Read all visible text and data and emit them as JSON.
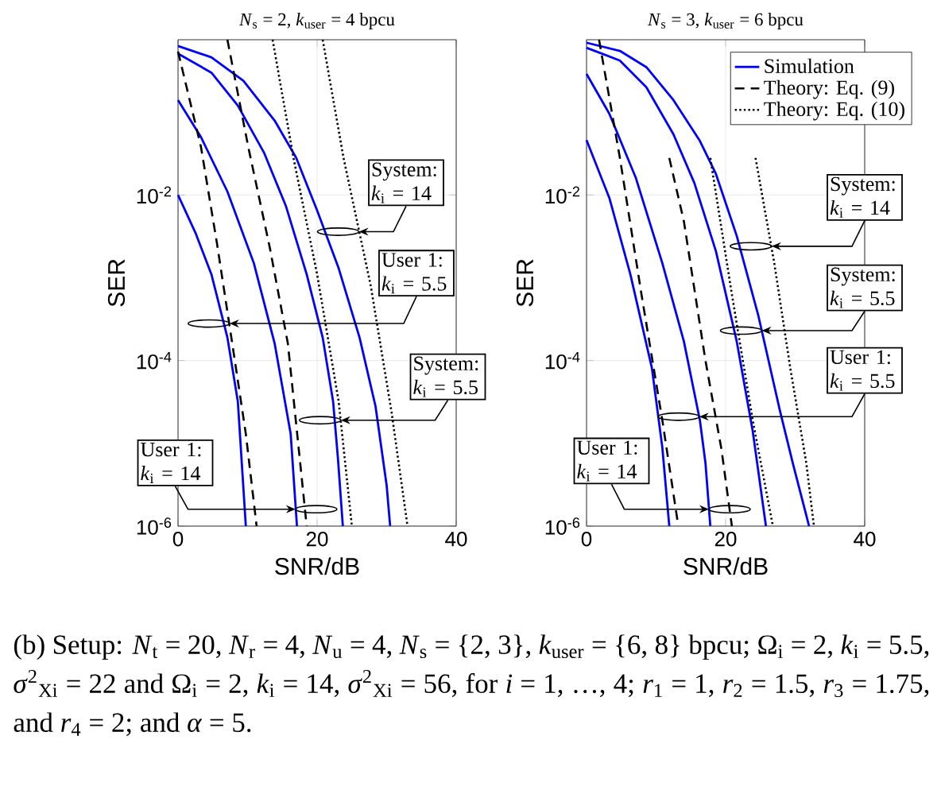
{
  "chart_data": [
    {
      "type": "line",
      "title": "*N*$_{s}$ = 2, *k*$_{user}$ = 4 bpcu",
      "xlabel": "SNR/dB",
      "ylabel": "SER",
      "log": "y",
      "grid": true,
      "xlim": [
        0,
        40
      ],
      "ylim": [
        1e-06,
        0.75
      ],
      "xticks": [
        0,
        20,
        40
      ],
      "yticks": [
        {
          "value": 1e-06,
          "label": "10$^{-6}$"
        },
        {
          "value": 0.0001,
          "label": "10$^{-4}$"
        },
        {
          "value": 0.01,
          "label": "10$^{-2}$"
        }
      ],
      "series": [
        {
          "color": "#0000ff",
          "line_style": "solid",
          "x": [
            0,
            4.8,
            9.4,
            13.9,
            17,
            20,
            23.1,
            26.1,
            28.4,
            30,
            30.5
          ],
          "values": [
            0.63,
            0.46,
            0.24,
            0.079,
            0.028,
            0.0065,
            0.0013,
            0.00019,
            2.8e-05,
            3.1e-06,
            1e-06
          ]
        },
        {
          "color": "#0000ff",
          "line_style": "solid",
          "x": [
            0,
            4.8,
            8.6,
            12.4,
            15.5,
            18.5,
            20.8,
            22.3,
            23,
            23.7
          ],
          "values": [
            0.51,
            0.3,
            0.12,
            0.032,
            0.0074,
            0.0011,
            0.00019,
            3.2e-05,
            6.5e-06,
            1e-06
          ]
        },
        {
          "color": "#0000ff",
          "line_style": "solid",
          "x": [
            0,
            3.3,
            7.1,
            10.9,
            13.9,
            16.2,
            17.1
          ],
          "values": [
            0.14,
            0.05,
            0.011,
            0.0015,
            0.00016,
            1.3e-05,
            1e-06
          ]
        },
        {
          "color": "#0000ff",
          "line_style": "solid",
          "x": [
            0,
            2.5,
            4.8,
            7.1,
            8.6,
            9.75
          ],
          "values": [
            0.01,
            0.0035,
            0.0011,
            0.00019,
            3.2e-05,
            1e-06
          ]
        },
        {
          "color": "#000000",
          "line_style": "dashed",
          "x": [
            0,
            3.3,
            5.6,
            7.8,
            9.75,
            11.3
          ],
          "values": [
            0.54,
            0.038,
            0.0026,
            0.00016,
            1.3e-05,
            1e-06
          ]
        },
        {
          "color": "#000000",
          "line_style": "dashed",
          "x": [
            7.1,
            10.1,
            13.2,
            15.8,
            18.5
          ],
          "values": [
            0.75,
            0.038,
            0.0023,
            0.00016,
            1e-06
          ]
        },
        {
          "color": "#000000",
          "line_style": "dotted",
          "x": [
            13.6,
            16.6,
            20,
            23.1,
            25
          ],
          "values": [
            0.75,
            0.028,
            0.0011,
            3.2e-05,
            1e-06
          ]
        },
        {
          "color": "#000000",
          "line_style": "dotted",
          "x": [
            20.8,
            23.8,
            27.7,
            30.7,
            33
          ],
          "values": [
            0.75,
            0.028,
            0.00081,
            2.4e-05,
            1e-06
          ]
        }
      ],
      "annotations": [
        {
          "text": "System: *k*$_{i}$ = 14",
          "x": 26,
          "y": 0.0036
        },
        {
          "text": "User 1: *k*$_{i}$ = 5.5",
          "x": 7.4,
          "y": 0.00028
        },
        {
          "text": "System: *k*$_{i}$ = 5.5",
          "x": 23.4,
          "y": 1.9e-05
        },
        {
          "text": "User 1: *k*$_{i}$ = 14",
          "x": 16.9,
          "y": 1.6e-06
        },
        "(b) Setup: *N*$_{t}$ = 20, *N*$_{r}$ = 4, *N*$_{u}$ = 4, *N*$_{s}$ = {2, 3}, *k*$_{user}$ = {6, 8} bpcu; Ω$_{i}$ = 2, *k*$_{i}$ = 5.5, *σ*$^{2}$$_{Xi}$ = 22 and Ω$_{i}$ = 2, *k*$_{i}$ = 14, *σ*$^{2}$$_{Xi}$ = 56, for *i* = 1, …, 4; *r*$_{1}$ = 1, *r*$_{2}$ = 1.5, *r*$_{3}$ = 1.75, and *r*$_{4}$ = 2; and *α* = 5."
      ]
    },
    {
      "type": "line",
      "title": "*N*$_{s}$ = 3, *k*$_{user}$ = 6 bpcu",
      "xlabel": "SNR/dB",
      "ylabel": "SER",
      "log": "y",
      "grid": true,
      "legend": "top right",
      "xlim": [
        0,
        40
      ],
      "ylim": [
        1e-06,
        0.75
      ],
      "xticks": [
        0,
        20,
        40
      ],
      "yticks": [
        {
          "value": 1e-06,
          "label": "10$^{-6}$"
        },
        {
          "value": 0.0001,
          "label": "10$^{-4}$"
        },
        {
          "value": 0.01,
          "label": "10$^{-2}$"
        }
      ],
      "series": [
        {
          "name": "Simulation",
          "color": "#0000ff",
          "line_style": "solid",
          "x": [
            0,
            4.8,
            8.6,
            12.5,
            16.3,
            18.6,
            21.6,
            24.7,
            27.8,
            29.7,
            32
          ],
          "values": [
            0.69,
            0.55,
            0.35,
            0.14,
            0.045,
            0.018,
            0.0032,
            0.00035,
            2.5e-05,
            5.6e-06,
            1e-06
          ]
        },
        {
          "color": "#0000ff",
          "line_style": "solid",
          "x": [
            0,
            4.8,
            8.6,
            12.5,
            15.5,
            18.6,
            21.6,
            23.9,
            25.8
          ],
          "values": [
            0.6,
            0.42,
            0.2,
            0.054,
            0.014,
            0.0021,
            0.00017,
            1.4e-05,
            1e-06
          ]
        },
        {
          "color": "#0000ff",
          "line_style": "solid",
          "x": [
            0,
            3.3,
            7.1,
            10.9,
            14,
            16.3,
            17.1,
            17.8
          ],
          "values": [
            0.29,
            0.095,
            0.016,
            0.0015,
            0.00017,
            1.9e-05,
            5.8e-06,
            1e-06
          ]
        },
        {
          "color": "#0000ff",
          "line_style": "solid",
          "x": [
            0,
            3.3,
            6.3,
            9.4,
            10.9,
            11.9
          ],
          "values": [
            0.046,
            0.0091,
            0.0011,
            8.1e-05,
            8.9e-06,
            1e-06
          ]
        },
        {
          "name": "Theory: Eq. (9)",
          "color": "#000000",
          "line_style": "dashed",
          "x": [
            1.8,
            4.8,
            7.9,
            10.9,
            13.2
          ],
          "values": [
            0.75,
            0.028,
            0.00063,
            1.9e-05,
            1e-06
          ]
        },
        {
          "color": "#000000",
          "line_style": "dashed",
          "x": [
            11.9,
            14,
            17.1,
            19.4,
            20.9
          ],
          "values": [
            0.028,
            0.0048,
            0.0001,
            8.5e-06,
            1e-06
          ]
        },
        {
          "name": "Theory: Eq. (10)",
          "color": "#000000",
          "line_style": "dotted",
          "x": [
            17.8,
            20.9,
            23.9,
            26.8
          ],
          "values": [
            0.028,
            0.00063,
            1.9e-05,
            1e-06
          ]
        },
        {
          "color": "#000000",
          "line_style": "dotted",
          "x": [
            24.3,
            27,
            29.3,
            31.6,
            32.7
          ],
          "values": [
            0.028,
            0.0015,
            8.1e-05,
            5.8e-06,
            1e-06
          ]
        }
      ],
      "annotations": [
        {
          "text": "System: *k*$_{i}$ = 14",
          "x": 26.6,
          "y": 0.0024
        },
        {
          "text": "System: *k*$_{i}$ = 5.5",
          "x": 25.2,
          "y": 0.00023
        },
        {
          "text": "User 1: *k*$_{i}$ = 5.5",
          "x": 16.2,
          "y": 2.1e-05
        },
        {
          "text": "User 1: *k*$_{i}$ = 14",
          "x": 17.6,
          "y": 1.6e-06
        }
      ]
    }
  ]
}
